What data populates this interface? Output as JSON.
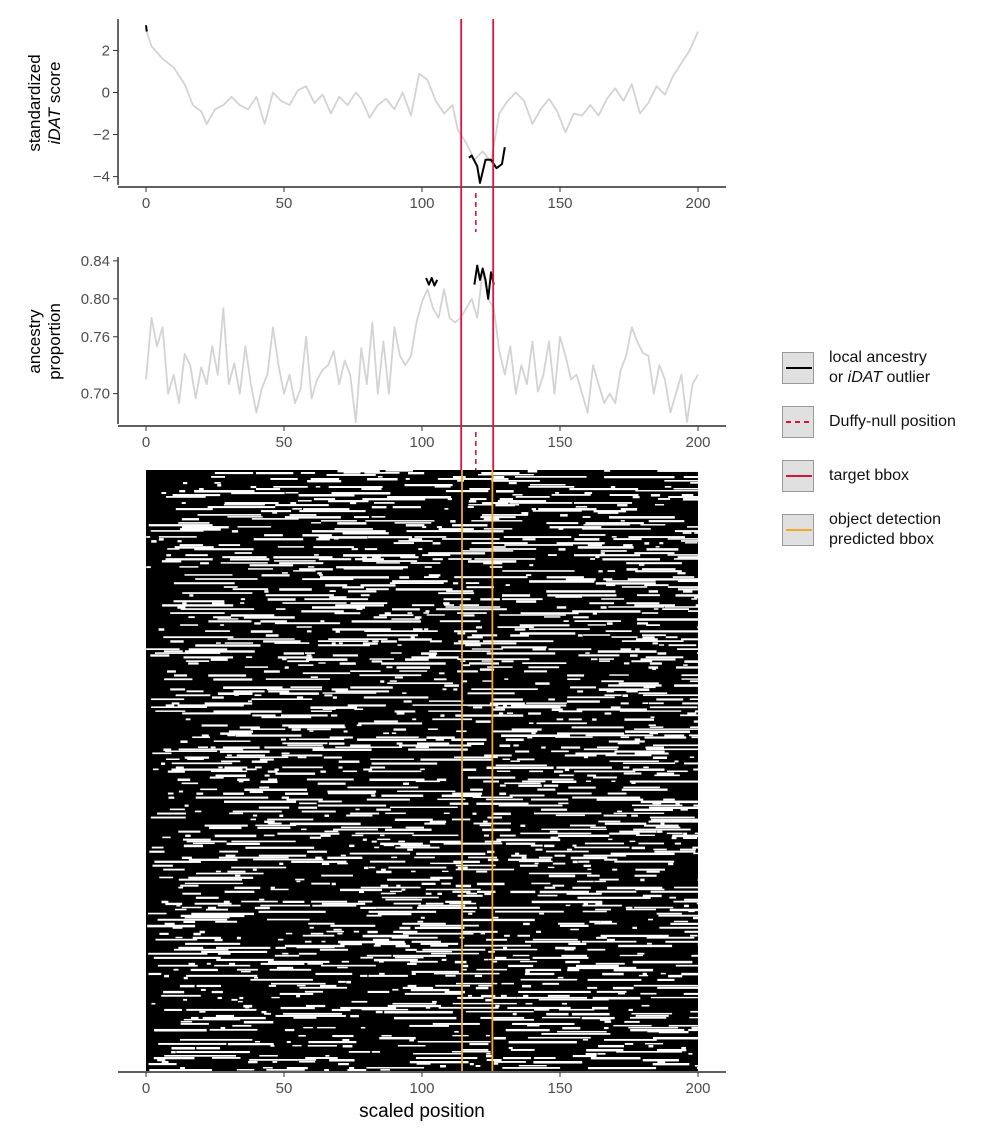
{
  "chart_data": [
    {
      "type": "line",
      "ylabel": [
        "standardized",
        "iDAT score"
      ],
      "xlim": [
        0,
        200
      ],
      "ylim": [
        -4.4,
        3.4
      ],
      "xticks": [
        0,
        50,
        100,
        150,
        200
      ],
      "yticks": [
        2,
        0,
        -2,
        -4
      ],
      "ytick_labels": [
        "2",
        "0",
        "−2",
        "−4"
      ],
      "series": [
        {
          "role": "background",
          "color": "#d3d3d3",
          "x": [
            0,
            2,
            6,
            10,
            14,
            17,
            20,
            22,
            25,
            28,
            31,
            34,
            37,
            40,
            43,
            46,
            49,
            52,
            55,
            58,
            61,
            64,
            67,
            70,
            73,
            76,
            78,
            81,
            84,
            87,
            90,
            93,
            96,
            99,
            102,
            105,
            108,
            111,
            113,
            116,
            119,
            122,
            125,
            128,
            131,
            134,
            137,
            140,
            143,
            146,
            149,
            152,
            155,
            158,
            161,
            164,
            167,
            170,
            173,
            176,
            179,
            182,
            185,
            188,
            191,
            194,
            197,
            200
          ],
          "y": [
            3.0,
            2.2,
            1.6,
            1.2,
            0.4,
            -0.6,
            -0.9,
            -1.5,
            -0.8,
            -0.6,
            -0.2,
            -0.6,
            -0.8,
            -0.2,
            -1.5,
            0.0,
            -0.4,
            -0.6,
            0.1,
            0.3,
            -0.5,
            -0.1,
            -1.0,
            -0.2,
            -0.6,
            0.0,
            -0.3,
            -1.2,
            -0.6,
            -0.3,
            -0.8,
            0.0,
            -1.1,
            0.9,
            0.6,
            -0.4,
            -1.0,
            -0.6,
            -1.8,
            -2.4,
            -3.2,
            -2.8,
            -3.3,
            -1.0,
            -0.4,
            0.0,
            -0.4,
            -1.5,
            -0.8,
            -0.3,
            -0.9,
            -1.9,
            -1.0,
            -1.1,
            -0.6,
            -1.1,
            -0.3,
            0.2,
            -0.4,
            0.4,
            -1.0,
            -0.5,
            0.3,
            -0.1,
            0.8,
            1.4,
            2.0,
            2.9
          ]
        },
        {
          "role": "outlier",
          "color": "#000000",
          "segments": [
            {
              "x": [
                0,
                0.3
              ],
              "y": [
                3.2,
                2.9
              ]
            },
            {
              "x": [
                117,
                118,
                120,
                121,
                123,
                125,
                127,
                129,
                130
              ],
              "y": [
                -3.1,
                -3.0,
                -3.5,
                -4.3,
                -3.2,
                -3.2,
                -3.6,
                -3.4,
                -2.6
              ]
            }
          ]
        }
      ],
      "duffy_null_x": 119.5
    },
    {
      "type": "line",
      "ylabel": [
        "ancestry",
        "proportion"
      ],
      "xlim": [
        0,
        200
      ],
      "ylim": [
        0.668,
        0.842
      ],
      "xticks": [
        0,
        50,
        100,
        150,
        200
      ],
      "yticks": [
        0.84,
        0.8,
        0.76,
        0.7
      ],
      "ytick_labels": [
        "0.84",
        "0.80",
        "0.76",
        "0.70"
      ],
      "series": [
        {
          "role": "background",
          "color": "#d3d3d3",
          "x": [
            0,
            2,
            4,
            6,
            8,
            10,
            12,
            14,
            16,
            18,
            20,
            22,
            24,
            26,
            28,
            30,
            32,
            34,
            36,
            38,
            40,
            42,
            44,
            46,
            48,
            50,
            52,
            54,
            56,
            58,
            60,
            62,
            64,
            66,
            68,
            70,
            72,
            74,
            76,
            78,
            80,
            82,
            84,
            86,
            88,
            90,
            92,
            94,
            96,
            98,
            100,
            102,
            104,
            106,
            108,
            110,
            112,
            114,
            116,
            118,
            120,
            122,
            124,
            126,
            128,
            130,
            132,
            134,
            136,
            138,
            140,
            142,
            144,
            146,
            148,
            150,
            152,
            154,
            156,
            158,
            160,
            162,
            164,
            166,
            168,
            170,
            172,
            174,
            176,
            178,
            180,
            182,
            184,
            186,
            188,
            190,
            192,
            194,
            196,
            198,
            200
          ],
          "y": [
            0.715,
            0.78,
            0.75,
            0.77,
            0.7,
            0.72,
            0.69,
            0.742,
            0.73,
            0.695,
            0.728,
            0.71,
            0.75,
            0.72,
            0.79,
            0.71,
            0.732,
            0.7,
            0.75,
            0.71,
            0.68,
            0.706,
            0.72,
            0.77,
            0.73,
            0.7,
            0.72,
            0.69,
            0.705,
            0.76,
            0.695,
            0.715,
            0.725,
            0.73,
            0.745,
            0.71,
            0.735,
            0.72,
            0.67,
            0.748,
            0.71,
            0.775,
            0.7,
            0.755,
            0.7,
            0.77,
            0.74,
            0.73,
            0.74,
            0.775,
            0.797,
            0.81,
            0.79,
            0.78,
            0.81,
            0.78,
            0.775,
            0.78,
            0.79,
            0.8,
            0.78,
            0.83,
            0.8,
            0.79,
            0.745,
            0.72,
            0.75,
            0.7,
            0.73,
            0.71,
            0.755,
            0.702,
            0.72,
            0.755,
            0.7,
            0.76,
            0.74,
            0.715,
            0.72,
            0.7,
            0.68,
            0.73,
            0.71,
            0.69,
            0.7,
            0.69,
            0.725,
            0.74,
            0.77,
            0.755,
            0.743,
            0.74,
            0.7,
            0.73,
            0.715,
            0.68,
            0.7,
            0.72,
            0.67,
            0.71,
            0.72
          ]
        },
        {
          "role": "outlier",
          "color": "#000000",
          "segments": [
            {
              "x": [
                101.5,
                102.5,
                103.5,
                104.5,
                105.5
              ],
              "y": [
                0.822,
                0.815,
                0.822,
                0.814,
                0.82
              ]
            },
            {
              "x": [
                119,
                120,
                121,
                122,
                123,
                124,
                125,
                126
              ],
              "y": [
                0.815,
                0.835,
                0.82,
                0.832,
                0.82,
                0.8,
                0.828,
                0.815
              ]
            }
          ]
        }
      ],
      "duffy_null_x": 119.5
    },
    {
      "type": "heatmap",
      "xlabel": "scaled position",
      "xlim": [
        0,
        200
      ],
      "xticks": [
        0,
        50,
        100,
        150,
        200
      ],
      "rows": 300,
      "colors": [
        "#000000",
        "#ffffff"
      ],
      "description_of_values": "binary local ancestry per sample (rows) across scaled position"
    }
  ],
  "annotations": {
    "target_bbox": {
      "x": [
        114.2,
        125.8
      ],
      "color": "#dc143c"
    },
    "predicted_bbox": {
      "x": [
        114.5,
        125.5
      ],
      "color": "#f5a623"
    },
    "duffy_null_color": "#dc143c",
    "gray_line_color": "#d3d3d3"
  },
  "legend": {
    "items": [
      {
        "key": "line-black",
        "lines": [
          [
            "local ancestry"
          ],
          [
            "or ",
            "iDAT",
            " outlier"
          ]
        ]
      },
      {
        "key": "line-dashed-red",
        "lines": [
          [
            "Duffy-null position"
          ]
        ]
      },
      {
        "key": "line-red",
        "lines": [
          [
            "target bbox"
          ]
        ]
      },
      {
        "key": "line-orange",
        "lines": [
          [
            "object detection"
          ],
          [
            " predicted bbox"
          ]
        ]
      }
    ]
  }
}
